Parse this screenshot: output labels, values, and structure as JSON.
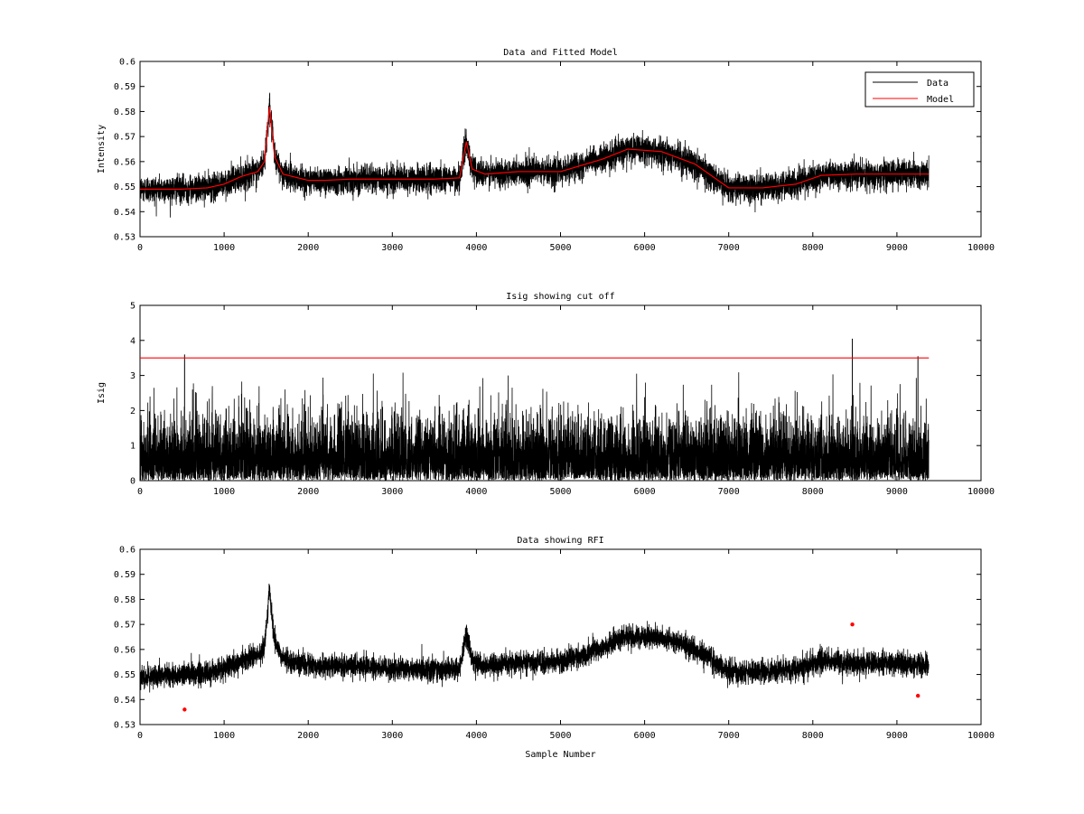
{
  "chart_data": [
    {
      "type": "line",
      "title": "Data and Fitted Model",
      "xlabel": "",
      "ylabel": "Intensity",
      "xlim": [
        0,
        10000
      ],
      "ylim": [
        0.53,
        0.6
      ],
      "xticks": [
        0,
        1000,
        2000,
        3000,
        4000,
        5000,
        6000,
        7000,
        8000,
        9000,
        10000
      ],
      "yticks": [
        0.53,
        0.54,
        0.55,
        0.56,
        0.57,
        0.58,
        0.59,
        0.6
      ],
      "ytick_labels": [
        "0.53",
        "0.54",
        "0.55",
        "0.56",
        "0.57",
        "0.58",
        "0.59",
        "0.6"
      ],
      "legend": {
        "placement": "top-right",
        "entries": [
          "Data",
          "Model"
        ]
      },
      "series": [
        {
          "name": "Data",
          "color": "#000000",
          "n_samples": 9380,
          "noise_amplitude": 0.006
        },
        {
          "name": "Model",
          "color": "#ff0000",
          "x": [
            0,
            500,
            800,
            1000,
            1200,
            1400,
            1480,
            1540,
            1600,
            1700,
            2000,
            2200,
            2500,
            3000,
            3500,
            3800,
            3880,
            3950,
            4100,
            4500,
            5000,
            5500,
            5800,
            6200,
            6600,
            7000,
            7400,
            7800,
            8100,
            8500,
            9000,
            9380
          ],
          "y": [
            0.549,
            0.549,
            0.5495,
            0.551,
            0.554,
            0.556,
            0.56,
            0.582,
            0.562,
            0.555,
            0.5525,
            0.5525,
            0.553,
            0.553,
            0.553,
            0.5535,
            0.568,
            0.557,
            0.555,
            0.556,
            0.556,
            0.561,
            0.565,
            0.564,
            0.559,
            0.5495,
            0.5495,
            0.551,
            0.5545,
            0.555,
            0.555,
            0.555
          ]
        }
      ]
    },
    {
      "type": "line",
      "title": "Isig showing cut off",
      "xlabel": "",
      "ylabel": "Isig",
      "xlim": [
        0,
        10000
      ],
      "ylim": [
        0,
        5
      ],
      "xticks": [
        0,
        1000,
        2000,
        3000,
        4000,
        5000,
        6000,
        7000,
        8000,
        9000,
        10000
      ],
      "yticks": [
        0,
        1,
        2,
        3,
        4,
        5
      ],
      "ytick_labels": [
        "0",
        "1",
        "2",
        "3",
        "4",
        "5"
      ],
      "series": [
        {
          "color": "#000000",
          "n_samples": 9380,
          "typical_max": 3.3,
          "peaks": [
            {
              "x": 530,
              "y": 3.6
            },
            {
              "x": 8470,
              "y": 4.05
            },
            {
              "x": 9250,
              "y": 3.55
            }
          ]
        },
        {
          "color": "#ff0000",
          "x": [
            0,
            9380
          ],
          "y": [
            3.5,
            3.5
          ]
        }
      ]
    },
    {
      "type": "line",
      "title": "Data showing RFI",
      "xlabel": "Sample Number",
      "ylabel": "",
      "xlim": [
        0,
        10000
      ],
      "ylim": [
        0.53,
        0.6
      ],
      "xticks": [
        0,
        1000,
        2000,
        3000,
        4000,
        5000,
        6000,
        7000,
        8000,
        9000,
        10000
      ],
      "yticks": [
        0.53,
        0.54,
        0.55,
        0.56,
        0.57,
        0.58,
        0.59,
        0.6
      ],
      "ytick_labels": [
        "0.53",
        "0.54",
        "0.55",
        "0.56",
        "0.57",
        "0.58",
        "0.59",
        "0.6"
      ],
      "series": [
        {
          "color": "#000000",
          "n_samples": 9380,
          "noise_amplitude": 0.005
        },
        {
          "type": "scatter",
          "color": "#ff0000",
          "x": [
            530,
            8470,
            9250
          ],
          "y": [
            0.536,
            0.57,
            0.5415
          ]
        }
      ]
    }
  ]
}
